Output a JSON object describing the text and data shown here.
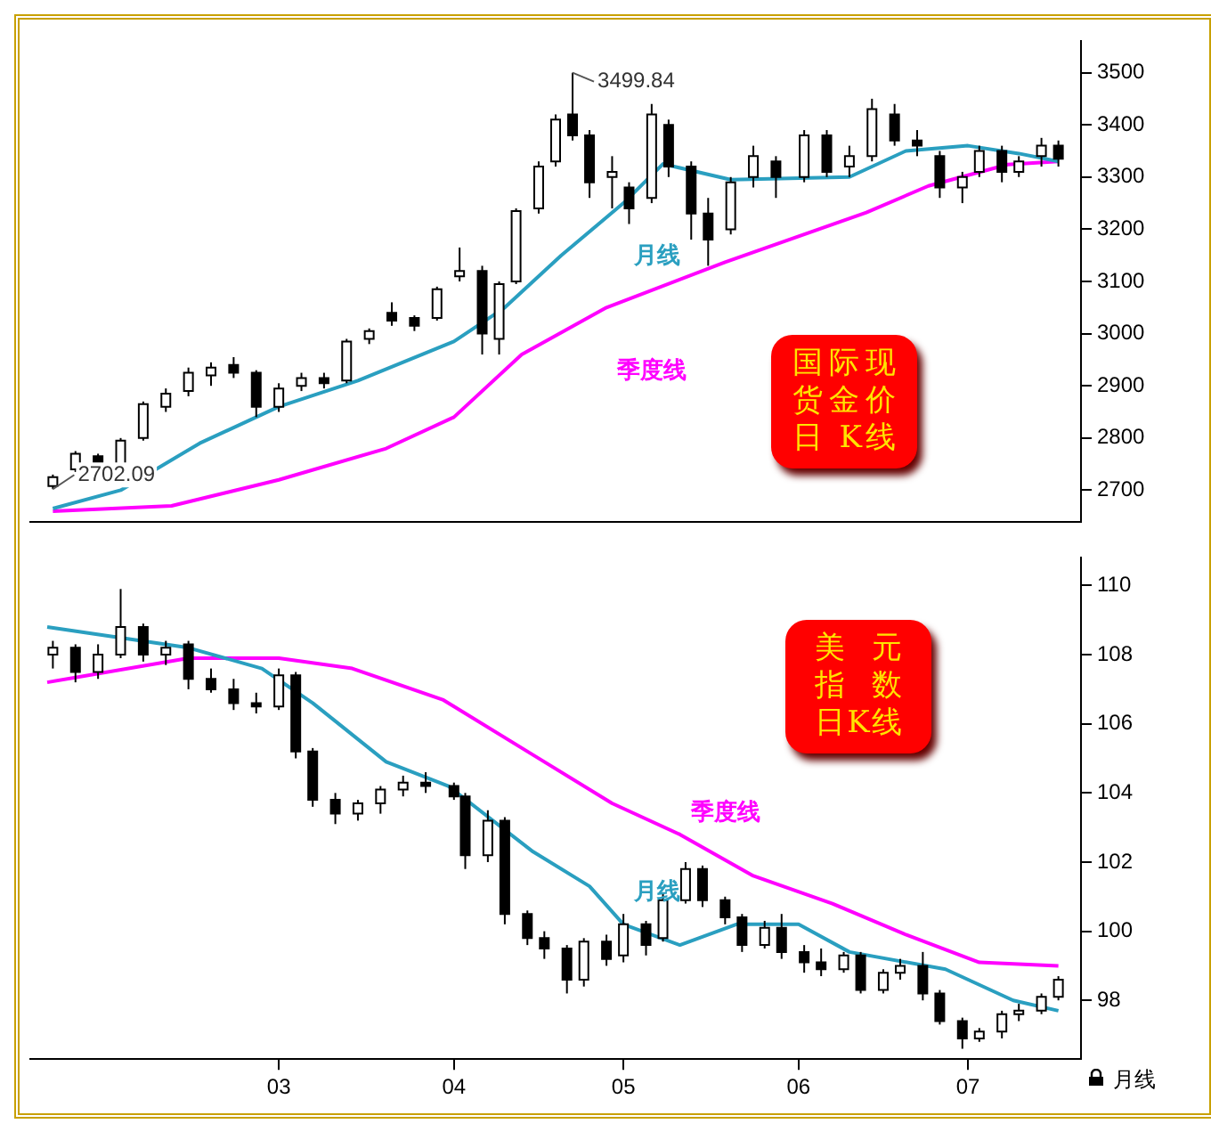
{
  "chart_data": [
    {
      "type": "candlestick",
      "title": "国际现货金价日 K线",
      "tick_labels": "y",
      "xlim": [
        "--01-16",
        "--07-21"
      ],
      "ylim": [
        2640,
        3560
      ],
      "yticks": [
        2700,
        2800,
        2900,
        3000,
        3100,
        3200,
        3300,
        3400,
        3500
      ],
      "x": [
        "--01-20",
        "--01-24",
        "--01-28",
        "--02-01",
        "--02-05",
        "--02-09",
        "--02-13",
        "--02-17",
        "--02-21",
        "--02-25",
        "--03-01",
        "--03-05",
        "--03-09",
        "--03-13",
        "--03-17",
        "--03-21",
        "--03-25",
        "--03-29",
        "--04-02",
        "--04-06",
        "--04-09",
        "--04-12",
        "--04-16",
        "--04-19",
        "--04-22",
        "--04-25",
        "--04-29",
        "--05-02",
        "--05-06",
        "--05-09",
        "--05-13",
        "--05-16",
        "--05-20",
        "--05-24",
        "--05-28",
        "--06-02",
        "--06-06",
        "--06-10",
        "--06-14",
        "--06-18",
        "--06-22",
        "--06-26",
        "--06-30",
        "--07-03",
        "--07-07",
        "--07-10",
        "--07-14",
        "--07-17"
      ],
      "ohlc": [
        [
          2708,
          2730,
          2702.09,
          2725
        ],
        [
          2740,
          2775,
          2735,
          2770
        ],
        [
          2765,
          2770,
          2730,
          2745
        ],
        [
          2750,
          2800,
          2745,
          2795
        ],
        [
          2800,
          2870,
          2795,
          2865
        ],
        [
          2860,
          2895,
          2850,
          2885
        ],
        [
          2890,
          2935,
          2880,
          2925
        ],
        [
          2920,
          2945,
          2900,
          2935
        ],
        [
          2940,
          2955,
          2915,
          2925
        ],
        [
          2925,
          2930,
          2840,
          2860
        ],
        [
          2860,
          2905,
          2850,
          2895
        ],
        [
          2900,
          2925,
          2890,
          2915
        ],
        [
          2915,
          2925,
          2895,
          2905
        ],
        [
          2910,
          2990,
          2905,
          2985
        ],
        [
          2990,
          3010,
          2980,
          3005
        ],
        [
          3040,
          3060,
          3015,
          3025
        ],
        [
          3030,
          3035,
          3005,
          3015
        ],
        [
          3030,
          3090,
          3025,
          3085
        ],
        [
          3110,
          3165,
          3100,
          3120
        ],
        [
          3120,
          3130,
          2960,
          3000
        ],
        [
          2990,
          3100,
          2960,
          3095
        ],
        [
          3100,
          3240,
          3095,
          3235
        ],
        [
          3240,
          3330,
          3230,
          3320
        ],
        [
          3330,
          3420,
          3320,
          3410
        ],
        [
          3420,
          3499.84,
          3370,
          3380
        ],
        [
          3380,
          3390,
          3260,
          3290
        ],
        [
          3300,
          3340,
          3240,
          3310
        ],
        [
          3280,
          3290,
          3210,
          3240
        ],
        [
          3260,
          3440,
          3250,
          3420
        ],
        [
          3400,
          3410,
          3300,
          3320
        ],
        [
          3320,
          3330,
          3180,
          3230
        ],
        [
          3230,
          3260,
          3130,
          3180
        ],
        [
          3200,
          3300,
          3190,
          3290
        ],
        [
          3300,
          3360,
          3280,
          3340
        ],
        [
          3330,
          3340,
          3260,
          3300
        ],
        [
          3300,
          3390,
          3290,
          3380
        ],
        [
          3380,
          3390,
          3300,
          3310
        ],
        [
          3320,
          3360,
          3300,
          3340
        ],
        [
          3340,
          3450,
          3330,
          3430
        ],
        [
          3420,
          3440,
          3360,
          3370
        ],
        [
          3370,
          3390,
          3340,
          3360
        ],
        [
          3340,
          3350,
          3260,
          3280
        ],
        [
          3280,
          3310,
          3250,
          3300
        ],
        [
          3310,
          3360,
          3300,
          3350
        ],
        [
          3350,
          3360,
          3290,
          3310
        ],
        [
          3310,
          3340,
          3300,
          3330
        ],
        [
          3340,
          3375,
          3320,
          3360
        ],
        [
          3360,
          3370,
          3320,
          3335
        ]
      ],
      "series": [
        {
          "name": "月线",
          "type": "line",
          "color": "#2a9fc0",
          "x": [
            "--01-20",
            "--02-01",
            "--02-15",
            "--03-01",
            "--03-15",
            "--04-01",
            "--04-10",
            "--04-20",
            "--05-01",
            "--05-08",
            "--05-20",
            "--06-10",
            "--06-20",
            "--07-01",
            "--07-10",
            "--07-17"
          ],
          "values": [
            2665,
            2700,
            2790,
            2860,
            2910,
            2985,
            3050,
            3150,
            3250,
            3325,
            3295,
            3300,
            3350,
            3360,
            3345,
            3330
          ]
        },
        {
          "name": "季度线",
          "type": "line",
          "color": "#ff00ff",
          "x": [
            "--01-20",
            "--02-10",
            "--03-01",
            "--03-20",
            "--04-01",
            "--04-13",
            "--04-28",
            "--05-19",
            "--06-13",
            "--06-24",
            "--07-08",
            "--07-17"
          ],
          "values": [
            2660,
            2670,
            2720,
            2780,
            2840,
            2960,
            3050,
            3137,
            3232,
            3283,
            3324,
            3330
          ]
        }
      ],
      "annotations": [
        {
          "text": "3499.84",
          "x": "--04-22",
          "y": 3499.84
        },
        {
          "text": "2702.09",
          "x": "--01-20",
          "y": 2702.09
        }
      ]
    },
    {
      "type": "candlestick",
      "title": "美元指数日K线",
      "xlim": [
        "--01-16",
        "--07-21"
      ],
      "xticks": [
        {
          "value": "--03-01",
          "label": "03"
        },
        {
          "value": "--04-01",
          "label": "04"
        },
        {
          "value": "--05-01",
          "label": "05"
        },
        {
          "value": "--06-01",
          "label": "06"
        },
        {
          "value": "--07-01",
          "label": "07"
        }
      ],
      "ylim": [
        96.3,
        110.8
      ],
      "yticks": [
        98,
        100,
        102,
        104,
        106,
        108,
        110
      ],
      "x": [
        "--01-20",
        "--01-24",
        "--01-28",
        "--02-01",
        "--02-05",
        "--02-09",
        "--02-13",
        "--02-17",
        "--02-21",
        "--02-25",
        "--03-01",
        "--03-04",
        "--03-07",
        "--03-11",
        "--03-15",
        "--03-19",
        "--03-23",
        "--03-27",
        "--04-01",
        "--04-03",
        "--04-07",
        "--04-10",
        "--04-14",
        "--04-17",
        "--04-21",
        "--04-24",
        "--04-28",
        "--05-01",
        "--05-05",
        "--05-08",
        "--05-12",
        "--05-15",
        "--05-19",
        "--05-22",
        "--05-26",
        "--05-29",
        "--06-02",
        "--06-05",
        "--06-09",
        "--06-12",
        "--06-16",
        "--06-19",
        "--06-23",
        "--06-26",
        "--06-30",
        "--07-03",
        "--07-07",
        "--07-10",
        "--07-14",
        "--07-17"
      ],
      "ohlc": [
        [
          108.0,
          108.4,
          107.6,
          108.2
        ],
        [
          108.2,
          108.3,
          107.2,
          107.5
        ],
        [
          107.5,
          108.3,
          107.3,
          108.0
        ],
        [
          108.0,
          109.9,
          107.9,
          108.8
        ],
        [
          108.8,
          108.9,
          107.8,
          108.0
        ],
        [
          108.0,
          108.4,
          107.7,
          108.2
        ],
        [
          108.3,
          108.4,
          107.0,
          107.3
        ],
        [
          107.3,
          107.6,
          106.9,
          107.0
        ],
        [
          107.0,
          107.3,
          106.4,
          106.6
        ],
        [
          106.6,
          106.9,
          106.3,
          106.5
        ],
        [
          106.5,
          107.6,
          106.4,
          107.4
        ],
        [
          107.4,
          107.5,
          105.0,
          105.2
        ],
        [
          105.2,
          105.3,
          103.6,
          103.8
        ],
        [
          103.8,
          104.0,
          103.1,
          103.4
        ],
        [
          103.4,
          103.8,
          103.2,
          103.7
        ],
        [
          103.7,
          104.2,
          103.4,
          104.1
        ],
        [
          104.1,
          104.5,
          103.9,
          104.3
        ],
        [
          104.3,
          104.6,
          104.0,
          104.2
        ],
        [
          104.2,
          104.3,
          103.8,
          103.9
        ],
        [
          103.9,
          104.0,
          101.8,
          102.2
        ],
        [
          102.2,
          103.5,
          102.0,
          103.2
        ],
        [
          103.2,
          103.3,
          100.2,
          100.5
        ],
        [
          100.5,
          100.6,
          99.6,
          99.8
        ],
        [
          99.8,
          100.0,
          99.2,
          99.5
        ],
        [
          99.5,
          99.6,
          98.2,
          98.6
        ],
        [
          98.6,
          99.8,
          98.4,
          99.7
        ],
        [
          99.7,
          99.9,
          99.0,
          99.2
        ],
        [
          99.3,
          100.5,
          99.1,
          100.2
        ],
        [
          100.2,
          100.3,
          99.3,
          99.6
        ],
        [
          99.8,
          101.1,
          99.7,
          100.9
        ],
        [
          100.9,
          102.0,
          100.8,
          101.8
        ],
        [
          101.8,
          101.9,
          100.7,
          100.9
        ],
        [
          100.9,
          101.0,
          100.2,
          100.4
        ],
        [
          100.4,
          100.5,
          99.4,
          99.6
        ],
        [
          99.6,
          100.3,
          99.5,
          100.1
        ],
        [
          100.1,
          100.5,
          99.2,
          99.4
        ],
        [
          99.4,
          99.6,
          98.8,
          99.1
        ],
        [
          99.1,
          99.5,
          98.7,
          98.9
        ],
        [
          98.9,
          99.4,
          98.8,
          99.3
        ],
        [
          99.3,
          99.4,
          98.2,
          98.3
        ],
        [
          98.3,
          98.9,
          98.2,
          98.8
        ],
        [
          98.8,
          99.2,
          98.6,
          99.0
        ],
        [
          99.0,
          99.4,
          98.0,
          98.2
        ],
        [
          98.2,
          98.3,
          97.3,
          97.4
        ],
        [
          97.4,
          97.5,
          96.6,
          96.9
        ],
        [
          96.9,
          97.2,
          96.8,
          97.1
        ],
        [
          97.1,
          97.7,
          96.9,
          97.6
        ],
        [
          97.6,
          97.9,
          97.4,
          97.7
        ],
        [
          97.7,
          98.2,
          97.6,
          98.1
        ],
        [
          98.1,
          98.7,
          98.0,
          98.6
        ]
      ],
      "series": [
        {
          "name": "月线",
          "type": "line",
          "color": "#2a9fc0",
          "x": [
            "--01-19",
            "--02-13",
            "--02-26",
            "--03-07",
            "--03-20",
            "--03-31",
            "--04-15",
            "--04-25",
            "--05-01",
            "--05-11",
            "--05-21",
            "--06-01",
            "--06-10",
            "--06-27",
            "--07-09",
            "--07-17"
          ],
          "values": [
            108.8,
            108.2,
            107.6,
            106.6,
            104.9,
            104.2,
            102.3,
            101.3,
            100.2,
            99.6,
            100.2,
            100.2,
            99.4,
            98.9,
            98.0,
            97.7
          ]
        },
        {
          "name": "季度线",
          "type": "line",
          "color": "#ff00ff",
          "x": [
            "--01-19",
            "--02-13",
            "--03-01",
            "--03-14",
            "--03-30",
            "--04-15",
            "--04-29",
            "--05-11",
            "--05-24",
            "--06-07",
            "--06-20",
            "--07-03",
            "--07-17"
          ],
          "values": [
            107.2,
            107.9,
            107.9,
            107.6,
            106.7,
            105.1,
            103.7,
            102.8,
            101.6,
            100.8,
            99.9,
            99.1,
            99.0
          ]
        }
      ],
      "annotations": [
        "月线"
      ]
    }
  ]
}
